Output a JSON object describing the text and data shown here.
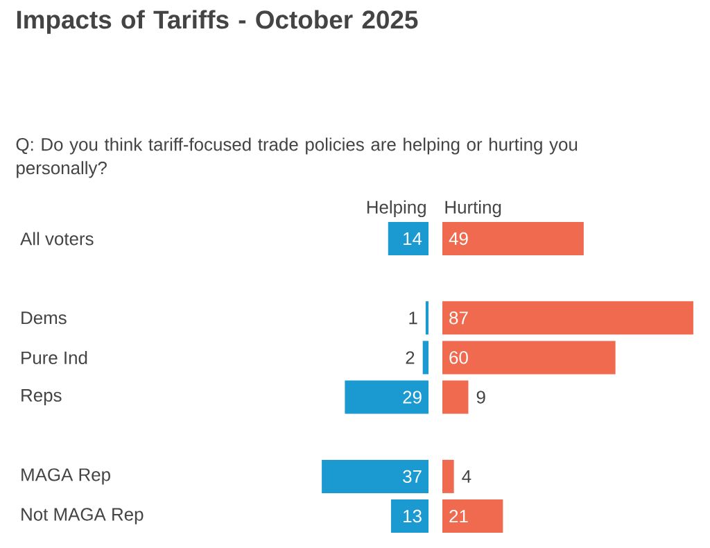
{
  "chart_data": [
    {
      "type": "bar",
      "orientation": "horizontal",
      "title": "Impacts of Tariffs - October 2025",
      "subtitle": "Q: Do you think tariff-focused trade policies are helping or hurting you personally?",
      "categories": [
        "All voters",
        null,
        "Dems",
        "Pure Ind",
        "Reps",
        null,
        "MAGA Rep",
        "Not MAGA Rep"
      ],
      "series": [
        {
          "name": "Helping",
          "color": "#1b9ad1",
          "values": [
            14,
            null,
            1,
            2,
            29,
            null,
            37,
            13
          ]
        }
      ],
      "data_labels": true,
      "tick_labels": "y"
    },
    {
      "type": "bar",
      "orientation": "horizontal",
      "series": [
        {
          "name": "Hurting",
          "color": "#ef6a4e",
          "values": [
            49,
            null,
            87,
            60,
            9,
            null,
            4,
            21
          ]
        }
      ],
      "data_labels": true,
      "tick_labels": false
    }
  ]
}
